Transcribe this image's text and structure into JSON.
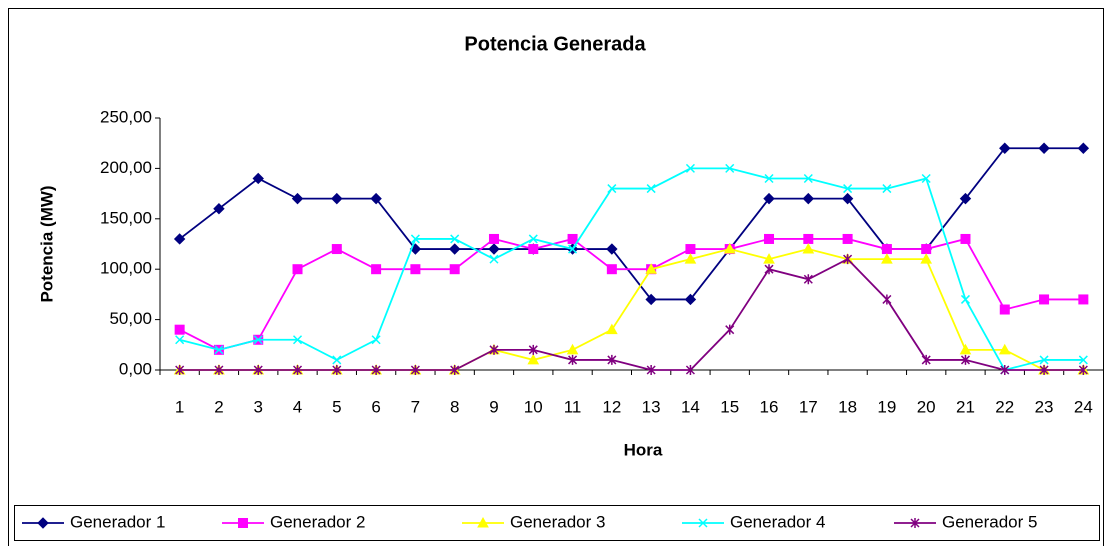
{
  "chart_data": {
    "type": "line",
    "title": "Potencia Generada",
    "x_label": "Hora",
    "y_label": "Potencia (MW)",
    "categories": [
      "1",
      "2",
      "3",
      "4",
      "5",
      "6",
      "7",
      "8",
      "9",
      "10",
      "11",
      "12",
      "13",
      "14",
      "15",
      "16",
      "17",
      "18",
      "19",
      "20",
      "21",
      "22",
      "23",
      "24"
    ],
    "series": [
      {
        "name": "Generador 1",
        "color": "#000080",
        "marker": "diamond",
        "values": [
          130,
          160,
          190,
          170,
          170,
          170,
          120,
          120,
          120,
          120,
          120,
          120,
          70,
          70,
          120,
          170,
          170,
          170,
          120,
          120,
          170,
          220,
          220,
          220
        ]
      },
      {
        "name": "Generador 2",
        "color": "#ff00ff",
        "marker": "square",
        "values": [
          40,
          20,
          30,
          100,
          120,
          100,
          100,
          100,
          130,
          120,
          130,
          100,
          100,
          120,
          120,
          130,
          130,
          130,
          120,
          120,
          130,
          60,
          70,
          70
        ]
      },
      {
        "name": "Generador 3",
        "color": "#ffff00",
        "marker": "triangle",
        "values": [
          0,
          0,
          0,
          0,
          0,
          0,
          0,
          0,
          20,
          10,
          20,
          40,
          100,
          110,
          120,
          110,
          120,
          110,
          110,
          110,
          20,
          20,
          0,
          0
        ]
      },
      {
        "name": "Generador 4",
        "color": "#00ffff",
        "marker": "x",
        "values": [
          30,
          20,
          30,
          30,
          10,
          30,
          130,
          130,
          110,
          130,
          120,
          180,
          180,
          200,
          200,
          190,
          190,
          180,
          180,
          190,
          70,
          0,
          10,
          10
        ]
      },
      {
        "name": "Generador 5",
        "color": "#800080",
        "marker": "star",
        "values": [
          0,
          0,
          0,
          0,
          0,
          0,
          0,
          0,
          20,
          20,
          10,
          10,
          0,
          0,
          40,
          100,
          90,
          110,
          70,
          10,
          10,
          0,
          0,
          0
        ]
      }
    ],
    "ylim": [
      0,
      250
    ],
    "yticks": [
      {
        "value": 0,
        "label": "0,00"
      },
      {
        "value": 50,
        "label": "50,00"
      },
      {
        "value": 100,
        "label": "100,00"
      },
      {
        "value": 150,
        "label": "150,00"
      },
      {
        "value": 200,
        "label": "200,00"
      },
      {
        "value": 250,
        "label": "250,00"
      }
    ],
    "legend": "bottom"
  }
}
